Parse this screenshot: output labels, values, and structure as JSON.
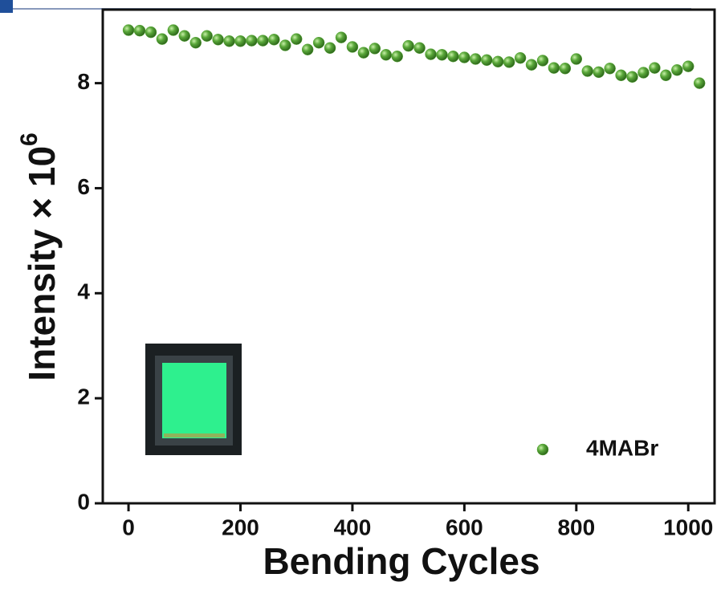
{
  "chart_data": {
    "type": "scatter",
    "x_label": "Bending Cycles",
    "y_label": "Intensity × 10",
    "y_label_exponent": "6",
    "series": [
      {
        "name": "4MABr",
        "color": "#5aa83a",
        "x": [
          0,
          20,
          40,
          60,
          80,
          100,
          120,
          140,
          160,
          180,
          200,
          220,
          240,
          260,
          280,
          300,
          320,
          340,
          360,
          380,
          400,
          420,
          440,
          460,
          480,
          500,
          520,
          540,
          560,
          580,
          600,
          620,
          640,
          660,
          680,
          700,
          720,
          740,
          760,
          780,
          800,
          820,
          840,
          860,
          880,
          900,
          920,
          940,
          960,
          980,
          1000,
          1020
        ],
        "values": [
          9.01,
          9.0,
          8.97,
          8.84,
          9.01,
          8.9,
          8.77,
          8.9,
          8.83,
          8.8,
          8.8,
          8.81,
          8.81,
          8.83,
          8.72,
          8.84,
          8.64,
          8.77,
          8.67,
          8.87,
          8.69,
          8.58,
          8.66,
          8.54,
          8.51,
          8.71,
          8.67,
          8.55,
          8.54,
          8.51,
          8.49,
          8.46,
          8.44,
          8.41,
          8.4,
          8.48,
          8.35,
          8.43,
          8.29,
          8.28,
          8.46,
          8.23,
          8.21,
          8.28,
          8.15,
          8.12,
          8.2,
          8.29,
          8.15,
          8.25,
          8.32,
          8.0
        ]
      }
    ],
    "xlim": [
      -46,
      1047
    ],
    "xticks": [
      0,
      200,
      400,
      600,
      800,
      1000
    ],
    "ylim": [
      0,
      9.4
    ],
    "yticks": [
      0,
      2,
      4,
      6,
      8
    ],
    "legend": "lower right"
  }
}
